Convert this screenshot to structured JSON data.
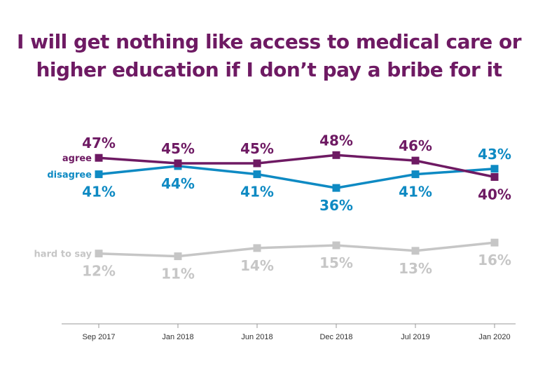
{
  "chart_data": {
    "type": "line",
    "title_lines": [
      "I will get nothing like access to medical care or",
      "higher education if I don’t pay a bribe for it"
    ],
    "categories": [
      "Sep 2017",
      "Jan 2018",
      "Jun 2018",
      "Dec 2018",
      "Jul 2019",
      "Jan 2020"
    ],
    "series": [
      {
        "name": "agree",
        "color": "#6e1a63",
        "values": [
          47,
          45,
          45,
          48,
          46,
          40
        ],
        "labels": [
          "47%",
          "45%",
          "45%",
          "48%",
          "46%",
          "40%"
        ],
        "label_position": [
          "above",
          "above",
          "above",
          "above",
          "above",
          "below"
        ]
      },
      {
        "name": "disagree",
        "color": "#0e8ac3",
        "values": [
          41,
          44,
          41,
          36,
          41,
          43
        ],
        "labels": [
          "41%",
          "44%",
          "41%",
          "36%",
          "41%",
          "43%"
        ],
        "label_position": [
          "below",
          "below",
          "below",
          "below",
          "below",
          "above"
        ]
      },
      {
        "name": "hard to say",
        "color": "#c6c6c6",
        "values": [
          12,
          11,
          14,
          15,
          13,
          16
        ],
        "labels": [
          "12%",
          "11%",
          "14%",
          "15%",
          "13%",
          "16%"
        ],
        "label_position": [
          "below",
          "below",
          "below",
          "below",
          "below",
          "below"
        ]
      }
    ],
    "ylim": [
      0,
      55
    ],
    "grid": false,
    "legend": "inline-left"
  }
}
